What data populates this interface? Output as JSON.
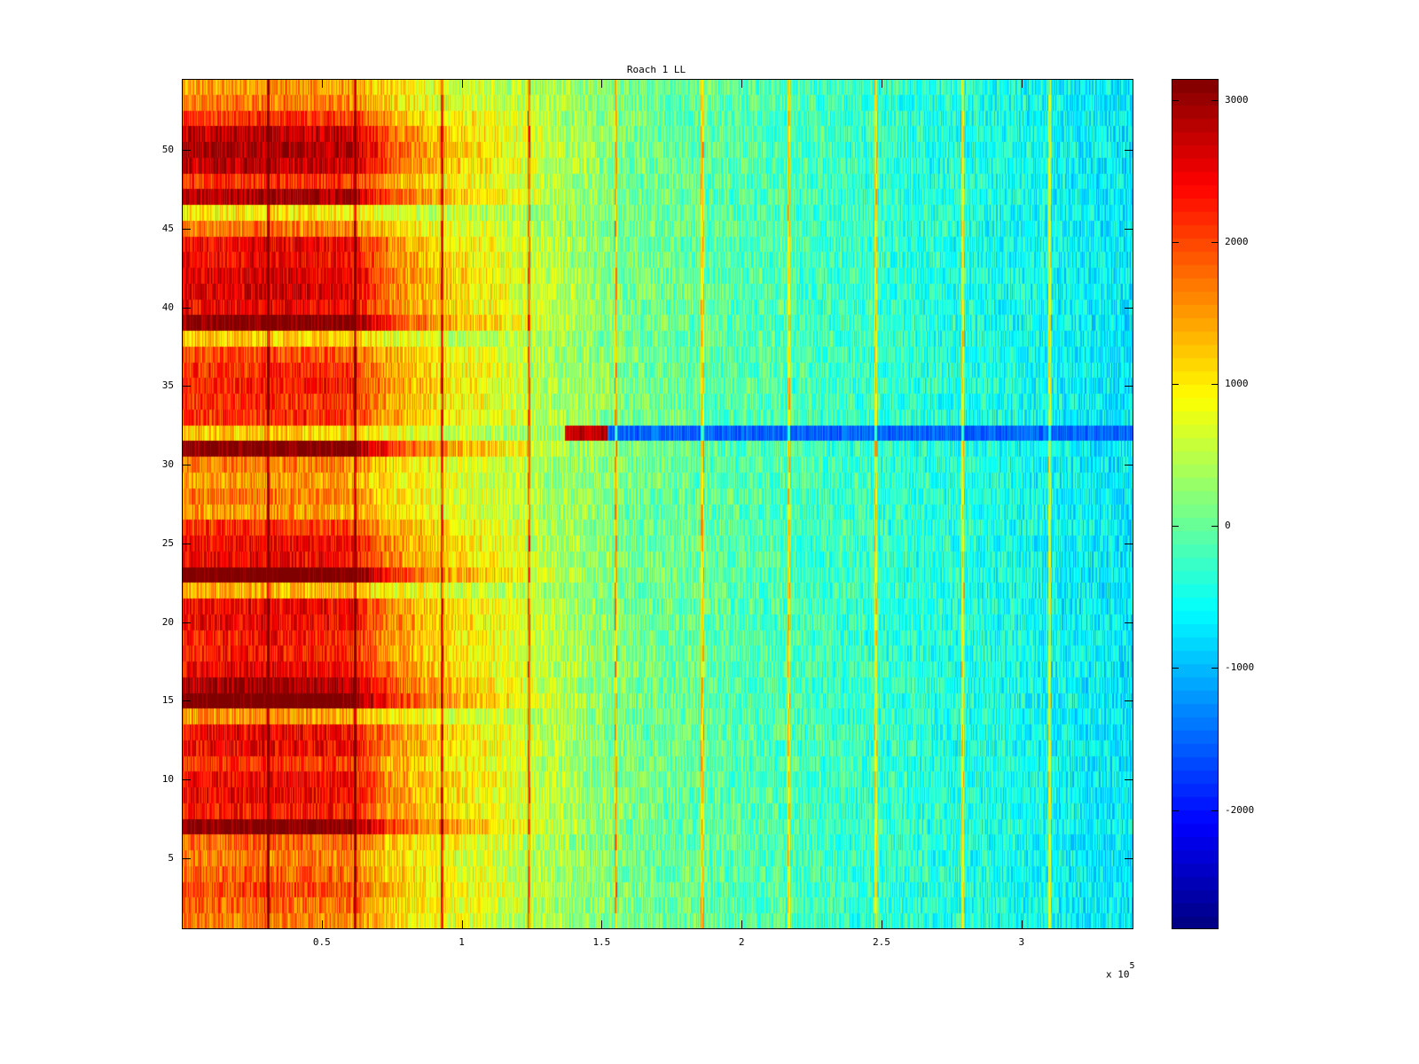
{
  "chart_data": {
    "type": "heatmap",
    "title": "Roach 1 LL",
    "xlabel": "",
    "ylabel": "",
    "x_multiplier_label": "x 10",
    "x_multiplier_exponent": "5",
    "xlim": [
      0,
      3.4
    ],
    "ylim": [
      0.5,
      54.5
    ],
    "clim": [
      -2840,
      3150
    ],
    "colormap": "jet",
    "x_ticks": [
      "0.5",
      "1",
      "1.5",
      "2",
      "2.5",
      "3"
    ],
    "x_tick_values": [
      0.5,
      1,
      1.5,
      2,
      2.5,
      3
    ],
    "y_ticks": [
      "5",
      "10",
      "15",
      "20",
      "25",
      "30",
      "35",
      "40",
      "45",
      "50"
    ],
    "y_tick_values": [
      5,
      10,
      15,
      20,
      25,
      30,
      35,
      40,
      45,
      50
    ],
    "colorbar_ticks": [
      "3000",
      "2000",
      "1000",
      "0",
      "-1000",
      "-2000"
    ],
    "colorbar_tick_values": [
      3000,
      2000,
      1000,
      0,
      -1000,
      -2000
    ],
    "rows": 54,
    "profile_x_knots": [
      0,
      0.3,
      0.6,
      0.75,
      0.9,
      1.1,
      1.3,
      1.6,
      2.0,
      2.5,
      3.0,
      3.4
    ],
    "baseline_profile": [
      900,
      900,
      800,
      600,
      500,
      400,
      300,
      100,
      -100,
      -300,
      -500,
      -700
    ],
    "hot_profile": [
      1500,
      1600,
      1600,
      1000,
      700,
      500,
      200,
      0,
      0,
      0,
      0,
      0
    ],
    "row_gain": [
      0.5,
      0.6,
      0.7,
      0.6,
      0.5,
      0.6,
      1.5,
      0.9,
      1.0,
      1.0,
      0.8,
      1.0,
      1.0,
      0.4,
      1.6,
      1.3,
      1.0,
      0.9,
      0.9,
      1.0,
      1.0,
      0.3,
      1.6,
      1.0,
      1.0,
      0.8,
      0.4,
      0.5,
      0.4,
      0.5,
      1.5,
      0.2,
      0.8,
      0.8,
      0.9,
      0.8,
      0.7,
      0.2,
      1.5,
      1.0,
      1.1,
      1.1,
      1.0,
      1.0,
      0.5,
      0.1,
      1.3,
      0.8,
      1.2,
      1.3,
      1.2,
      0.8,
      0.5,
      0.4
    ],
    "stripe_x": [
      0.31,
      0.62,
      0.93,
      1.24,
      1.55,
      1.86,
      2.17,
      2.48,
      2.79,
      3.1
    ],
    "stripe_boost": 1500,
    "noise_amplitude": 500,
    "row32_segments": [
      {
        "from": 1.37,
        "to": 1.52,
        "value": 2800
      },
      {
        "from": 1.52,
        "to": 3.4,
        "value": -1500
      }
    ]
  }
}
